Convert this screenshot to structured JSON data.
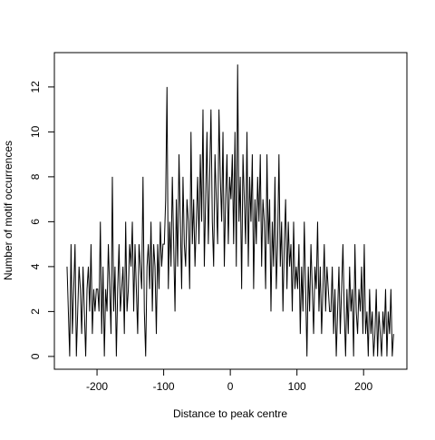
{
  "chart_data": {
    "type": "line",
    "xlabel": "Distance to peak centre",
    "ylabel": "Number of motif occurrences",
    "xlim": [
      -264,
      265
    ],
    "ylim": [
      -0.57,
      13.53
    ],
    "xticks": [
      -200,
      -100,
      0,
      100,
      200
    ],
    "yticks": [
      0,
      2,
      4,
      6,
      8,
      10,
      12
    ],
    "color": "#000000",
    "x": [
      -245,
      -243,
      -241,
      -239,
      -237,
      -235,
      -233,
      -231,
      -229,
      -227,
      -225,
      -223,
      -221,
      -219,
      -217,
      -215,
      -213,
      -211,
      -209,
      -207,
      -205,
      -203,
      -201,
      -199,
      -197,
      -195,
      -193,
      -191,
      -189,
      -187,
      -185,
      -183,
      -181,
      -179,
      -177,
      -175,
      -173,
      -171,
      -169,
      -167,
      -165,
      -163,
      -161,
      -159,
      -157,
      -155,
      -153,
      -151,
      -149,
      -147,
      -145,
      -143,
      -141,
      -139,
      -137,
      -135,
      -133,
      -131,
      -129,
      -127,
      -125,
      -123,
      -121,
      -119,
      -117,
      -115,
      -113,
      -111,
      -109,
      -107,
      -105,
      -103,
      -101,
      -99,
      -97,
      -95,
      -93,
      -91,
      -89,
      -87,
      -85,
      -83,
      -81,
      -79,
      -77,
      -75,
      -73,
      -71,
      -69,
      -67,
      -65,
      -63,
      -61,
      -59,
      -57,
      -55,
      -53,
      -51,
      -49,
      -47,
      -45,
      -43,
      -41,
      -39,
      -37,
      -35,
      -33,
      -31,
      -29,
      -27,
      -25,
      -23,
      -21,
      -19,
      -17,
      -15,
      -13,
      -11,
      -9,
      -7,
      -5,
      -3,
      -1,
      1,
      3,
      5,
      7,
      9,
      11,
      13,
      15,
      17,
      19,
      21,
      23,
      25,
      27,
      29,
      31,
      33,
      35,
      37,
      39,
      41,
      43,
      45,
      47,
      49,
      51,
      53,
      55,
      57,
      59,
      61,
      63,
      65,
      67,
      69,
      71,
      73,
      75,
      77,
      79,
      81,
      83,
      85,
      87,
      89,
      91,
      93,
      95,
      97,
      99,
      101,
      103,
      105,
      107,
      109,
      111,
      113,
      115,
      117,
      119,
      121,
      123,
      125,
      127,
      129,
      131,
      133,
      135,
      137,
      139,
      141,
      143,
      145,
      147,
      149,
      151,
      153,
      155,
      157,
      159,
      161,
      163,
      165,
      167,
      169,
      171,
      173,
      175,
      177,
      179,
      181,
      183,
      185,
      187,
      189,
      191,
      193,
      195,
      197,
      199,
      201,
      203,
      205,
      207,
      209,
      211,
      213,
      215,
      217,
      219,
      221,
      223,
      225,
      227,
      229,
      231,
      233,
      235,
      237,
      239,
      241,
      243,
      245
    ],
    "values": [
      4,
      2,
      0,
      5,
      1,
      3,
      5,
      0,
      2,
      4,
      3,
      1,
      4,
      2,
      0,
      3,
      4,
      2,
      5,
      1,
      3,
      2,
      3,
      3,
      2,
      6,
      1,
      4,
      0,
      3,
      2,
      5,
      3,
      1,
      8,
      2,
      4,
      0,
      3,
      5,
      2,
      3,
      4,
      1,
      6,
      2,
      3,
      5,
      4,
      6,
      2,
      5,
      3,
      1,
      5,
      4,
      3,
      8,
      2,
      0,
      4,
      5,
      3,
      6,
      2,
      5,
      4,
      1,
      5,
      3,
      6,
      4,
      5,
      5,
      7,
      12,
      3,
      6,
      4,
      8,
      5,
      2,
      7,
      4,
      9,
      6,
      3,
      8,
      5,
      4,
      7,
      6,
      3,
      10,
      5,
      7,
      4,
      6,
      8,
      5,
      9,
      6,
      11,
      4,
      7,
      10,
      5,
      8,
      11,
      6,
      4,
      9,
      7,
      5,
      11,
      8,
      6,
      10,
      4,
      7,
      9,
      5,
      8,
      7,
      9,
      5,
      10,
      4,
      13,
      6,
      8,
      3,
      9,
      7,
      5,
      10,
      4,
      8,
      6,
      9,
      3,
      7,
      5,
      8,
      6,
      9,
      4,
      7,
      6,
      3,
      9,
      5,
      7,
      2,
      6,
      4,
      8,
      3,
      5,
      9,
      4,
      6,
      2,
      5,
      7,
      3,
      6,
      4,
      5,
      2,
      6,
      3,
      4,
      3,
      5,
      1,
      4,
      2,
      6,
      3,
      0,
      4,
      2,
      5,
      3,
      1,
      4,
      3,
      6,
      2,
      4,
      1,
      3,
      5,
      2,
      4,
      3,
      2,
      2,
      4,
      1,
      3,
      0,
      2,
      4,
      1,
      3,
      5,
      2,
      0,
      3,
      1,
      4,
      2,
      3,
      0,
      5,
      2,
      1,
      3,
      2,
      4,
      1,
      5,
      1,
      2,
      0,
      3,
      1,
      2,
      0,
      1,
      3,
      0,
      2,
      1,
      0,
      2,
      1,
      3,
      0,
      2,
      1,
      3,
      0,
      1
    ]
  }
}
